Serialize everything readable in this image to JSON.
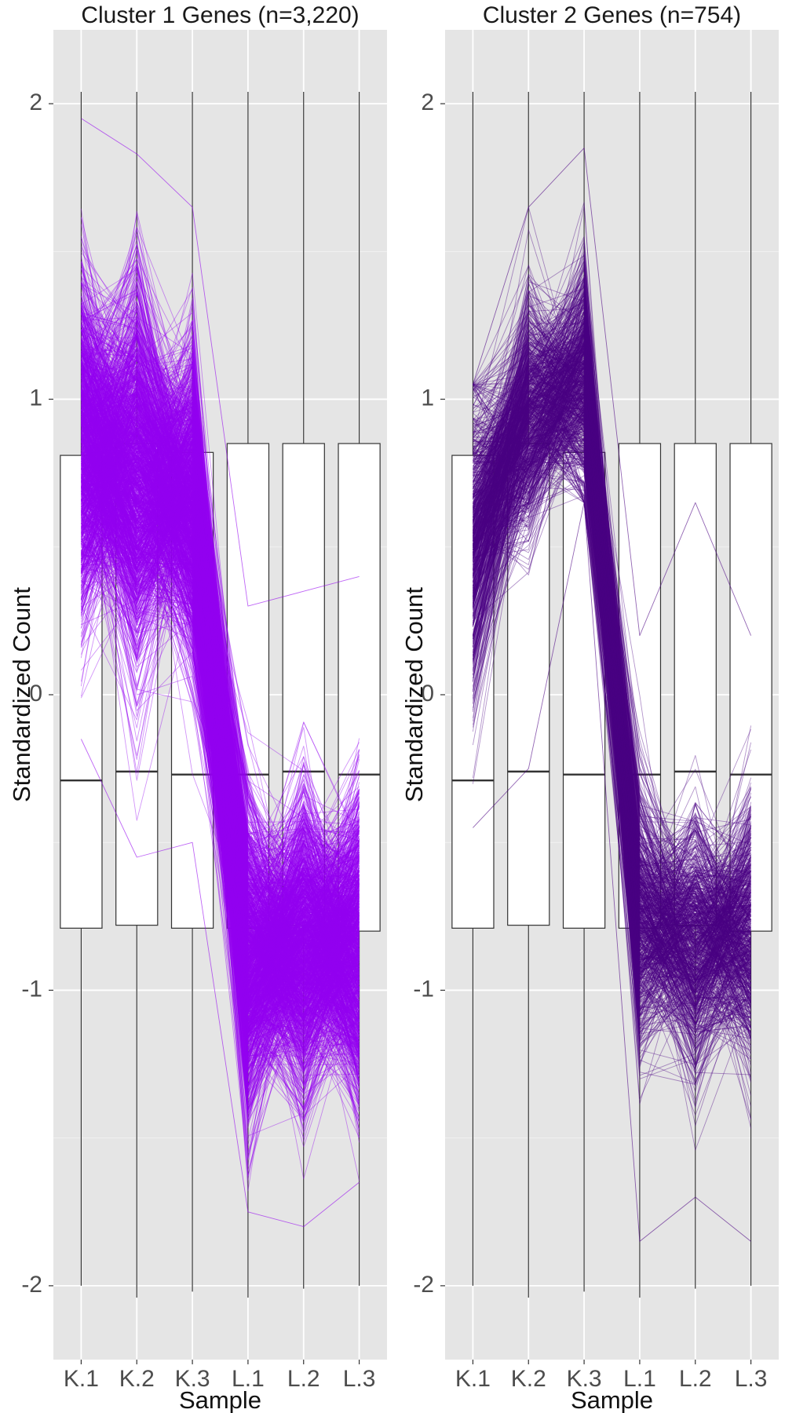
{
  "chart_data": [
    {
      "type": "boxplot+parallel-lines",
      "title": "Cluster 1 Genes (n=3,220)",
      "xlabel": "Sample",
      "ylabel": "Standardized Count",
      "categories": [
        "K.1",
        "K.2",
        "K.3",
        "L.1",
        "L.2",
        "L.3"
      ],
      "ylim": [
        -2.25,
        2.25
      ],
      "yticks": [
        -2,
        -1,
        0,
        1,
        2
      ],
      "line_color": "#9400F0",
      "n_genes": 3220,
      "boxes": [
        {
          "sample": "K.1",
          "min": -2.0,
          "q1": -0.79,
          "median": -0.29,
          "q3": 0.81,
          "max": 2.04
        },
        {
          "sample": "K.2",
          "min": -2.04,
          "q1": -0.78,
          "median": -0.26,
          "q3": 0.85,
          "max": 2.04
        },
        {
          "sample": "K.3",
          "min": -2.02,
          "q1": -0.79,
          "median": -0.27,
          "q3": 0.82,
          "max": 2.04
        },
        {
          "sample": "L.1",
          "min": -2.04,
          "q1": -0.79,
          "median": -0.27,
          "q3": 0.85,
          "max": 2.04
        },
        {
          "sample": "L.2",
          "min": -2.01,
          "q1": -0.78,
          "median": -0.26,
          "q3": 0.85,
          "max": 2.04
        },
        {
          "sample": "L.3",
          "min": -2.0,
          "q1": -0.8,
          "median": -0.27,
          "q3": 0.85,
          "max": 2.04
        }
      ],
      "profile_mean": [
        0.85,
        0.75,
        0.65,
        -0.9,
        -0.85,
        -0.85
      ],
      "profile_spread": [
        0.5,
        0.55,
        0.45,
        0.45,
        0.45,
        0.45
      ],
      "profile_max": [
        1.95,
        1.83,
        1.65,
        0.3,
        0.35,
        0.4
      ],
      "profile_min": [
        -0.15,
        -0.55,
        -0.5,
        -1.75,
        -1.8,
        -1.65
      ]
    },
    {
      "type": "boxplot+parallel-lines",
      "title": "Cluster 2 Genes (n=754)",
      "xlabel": "Sample",
      "ylabel": "Standardized Count",
      "categories": [
        "K.1",
        "K.2",
        "K.3",
        "L.1",
        "L.2",
        "L.3"
      ],
      "ylim": [
        -2.25,
        2.25
      ],
      "yticks": [
        -2,
        -1,
        0,
        1,
        2
      ],
      "line_color": "#4B0082",
      "n_genes": 754,
      "boxes": [
        {
          "sample": "K.1",
          "min": -2.0,
          "q1": -0.79,
          "median": -0.29,
          "q3": 0.81,
          "max": 2.04
        },
        {
          "sample": "K.2",
          "min": -2.04,
          "q1": -0.78,
          "median": -0.26,
          "q3": 0.85,
          "max": 2.04
        },
        {
          "sample": "K.3",
          "min": -2.02,
          "q1": -0.79,
          "median": -0.27,
          "q3": 0.82,
          "max": 2.04
        },
        {
          "sample": "L.1",
          "min": -2.04,
          "q1": -0.79,
          "median": -0.27,
          "q3": 0.85,
          "max": 2.04
        },
        {
          "sample": "L.2",
          "min": -2.01,
          "q1": -0.78,
          "median": -0.26,
          "q3": 0.85,
          "max": 2.04
        },
        {
          "sample": "L.3",
          "min": -2.0,
          "q1": -0.8,
          "median": -0.27,
          "q3": 0.85,
          "max": 2.04
        }
      ],
      "profile_mean": [
        0.55,
        0.95,
        1.05,
        -0.75,
        -0.85,
        -0.8
      ],
      "profile_spread": [
        0.45,
        0.35,
        0.35,
        0.4,
        0.4,
        0.4
      ],
      "profile_max": [
        1.05,
        1.65,
        1.85,
        0.2,
        0.65,
        0.2
      ],
      "profile_min": [
        -0.45,
        -0.25,
        0.65,
        -1.85,
        -1.7,
        -1.85
      ]
    }
  ]
}
